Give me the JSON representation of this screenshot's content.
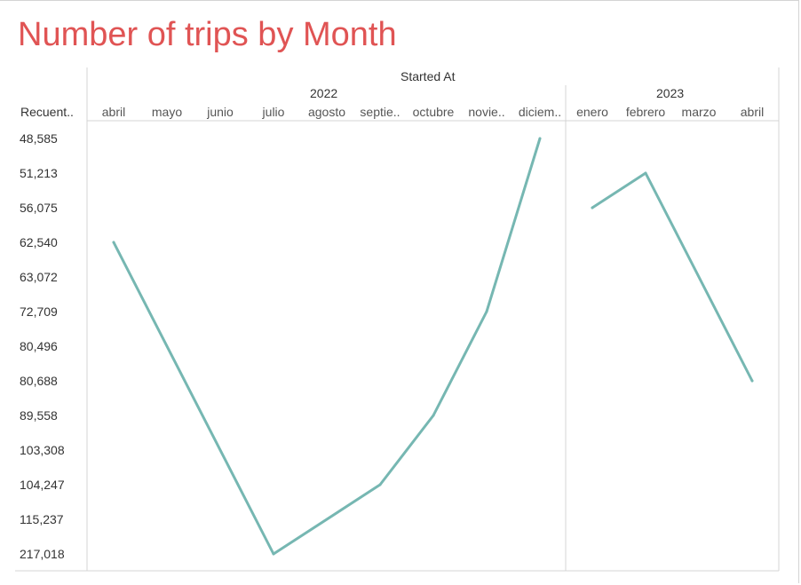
{
  "title": "Number of trips by Month",
  "column_header": "Started At",
  "row_header": "Recuent..",
  "colors": {
    "title": "#e05454",
    "line": "#76b7b2",
    "grid": "#d4d4d4"
  },
  "chart_data": {
    "type": "line",
    "title": "Number of trips by Month",
    "xlabel": "Started At",
    "ylabel": "Recuent..",
    "groups": [
      {
        "year": "2022",
        "months": [
          "abril",
          "mayo",
          "junio",
          "julio",
          "agosto",
          "septie..",
          "octubre",
          "novie..",
          "diciem.."
        ],
        "values": [
          62540,
          null,
          null,
          217018,
          null,
          104247,
          89558,
          72709,
          48585
        ]
      },
      {
        "year": "2023",
        "months": [
          "enero",
          "febrero",
          "marzo",
          "abril"
        ],
        "values": [
          56075,
          51213,
          null,
          80688
        ]
      }
    ],
    "y_axis_ticks": [
      "48,585",
      "51,213",
      "56,075",
      "62,540",
      "63,072",
      "72,709",
      "80,496",
      "80,688",
      "89,558",
      "103,308",
      "104,247",
      "115,237",
      "217,018"
    ],
    "y_axis_order": "discrete ascending from top",
    "grid": false,
    "legend": "none"
  }
}
